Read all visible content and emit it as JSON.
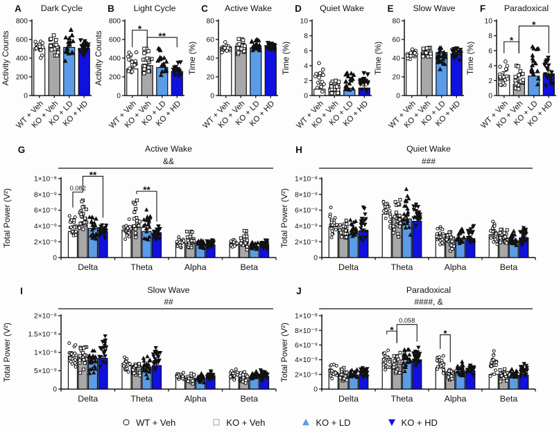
{
  "figure_title": "Sleep-wake activity and EEG spectral power figure",
  "colors": {
    "background": "#fdfdfd",
    "axis": "#111111",
    "wt_veh_fill": "#ffffff",
    "ko_veh_fill": "#a8a8a8",
    "ko_ld_fill": "#5b9ce8",
    "ko_hd_fill": "#1010e0",
    "legend_square_stroke": "#9e9e9e"
  },
  "cohorts": [
    {
      "label": "WT + Veh",
      "fill": "#ffffff",
      "marker": "circle-open"
    },
    {
      "label": "KO + Veh",
      "fill": "#a8a8a8",
      "marker": "square-open"
    },
    {
      "label": "KO + LD",
      "fill": "#5b9ce8",
      "marker": "triangle-up"
    },
    {
      "label": "KO + HD",
      "fill": "#1010e0",
      "marker": "triangle-down"
    }
  ],
  "chart_data": [
    {
      "panel": "A",
      "type": "bar",
      "title": "Dark Cycle",
      "ylabel": "Activity Counts",
      "ylim": [
        0,
        800
      ],
      "yticks": [
        [
          0,
          "0"
        ],
        [
          200,
          "200"
        ],
        [
          400,
          "400"
        ],
        [
          600,
          "600"
        ],
        [
          800,
          "800"
        ]
      ],
      "categories": [
        "WT + Veh",
        "KO + Veh",
        "KO + LD",
        "KO + HD"
      ],
      "values": [
        505,
        525,
        515,
        505
      ],
      "scatter_range": [
        [
          380,
          620
        ],
        [
          390,
          700
        ],
        [
          300,
          780
        ],
        [
          390,
          620
        ]
      ],
      "n_points": 20,
      "err_frac": 0.025,
      "sig": []
    },
    {
      "panel": "B",
      "type": "bar",
      "title": "Light Cycle",
      "ylabel": "Activity Counts",
      "ylim": [
        0,
        800
      ],
      "yticks": [
        [
          0,
          "0"
        ],
        [
          200,
          "200"
        ],
        [
          400,
          "400"
        ],
        [
          600,
          "600"
        ],
        [
          800,
          "800"
        ]
      ],
      "categories": [
        "WT + Veh",
        "KO + Veh",
        "KO + LD",
        "KO + HD"
      ],
      "values": [
        285,
        320,
        300,
        258
      ],
      "scatter_range": [
        [
          195,
          480
        ],
        [
          175,
          550
        ],
        [
          190,
          545
        ],
        [
          170,
          380
        ]
      ],
      "n_points": 20,
      "err_frac": 0.05,
      "sig": [
        {
          "from": 0,
          "to": 1,
          "label": "*",
          "y": 700
        },
        {
          "from": 1,
          "to": 3,
          "label": "**",
          "y": 622
        }
      ]
    },
    {
      "panel": "C",
      "type": "bar",
      "title": "Active Wake",
      "ylabel": "Time (%)",
      "ylim": [
        0,
        80
      ],
      "yticks": [
        [
          0,
          "0"
        ],
        [
          20,
          "20"
        ],
        [
          40,
          "40"
        ],
        [
          60,
          "60"
        ],
        [
          80,
          "80"
        ]
      ],
      "categories": [
        "WT + Veh",
        "KO + Veh",
        "KO + LD",
        "KO + HD"
      ],
      "values": [
        52,
        53,
        51,
        52
      ],
      "scatter_range": [
        [
          44,
          58
        ],
        [
          42,
          62
        ],
        [
          43,
          61
        ],
        [
          46,
          58
        ]
      ],
      "n_points": 20,
      "err_frac": 0.015,
      "sig": []
    },
    {
      "panel": "D",
      "type": "bar",
      "title": "Quiet Wake",
      "ylabel": "Time (%)",
      "ylim": [
        0,
        10
      ],
      "yticks": [
        [
          0,
          "0"
        ],
        [
          2,
          "2"
        ],
        [
          4,
          "4"
        ],
        [
          6,
          "6"
        ],
        [
          8,
          "8"
        ],
        [
          10,
          "10"
        ]
      ],
      "categories": [
        "WT + Veh",
        "KO + Veh",
        "KO + LD",
        "KO + HD"
      ],
      "values": [
        0.85,
        0.55,
        0.75,
        1.0
      ],
      "scatter_range": [
        [
          0.05,
          4.7
        ],
        [
          0.05,
          2.1
        ],
        [
          0.05,
          4.4
        ],
        [
          0.1,
          3.4
        ]
      ],
      "n_points": 20,
      "err_frac": 0.3,
      "sig": []
    },
    {
      "panel": "E",
      "type": "bar",
      "title": "Slow Wave",
      "ylabel": "Time (%)",
      "ylim": [
        0,
        80
      ],
      "yticks": [
        [
          0,
          "0"
        ],
        [
          20,
          "20"
        ],
        [
          40,
          "40"
        ],
        [
          60,
          "60"
        ],
        [
          80,
          "80"
        ]
      ],
      "categories": [
        "WT + Veh",
        "KO + Veh",
        "KO + LD",
        "KO + HD"
      ],
      "values": [
        45,
        46,
        46,
        44
      ],
      "scatter_range": [
        [
          38,
          52
        ],
        [
          37,
          58
        ],
        [
          28,
          56
        ],
        [
          37,
          53
        ]
      ],
      "n_points": 20,
      "err_frac": 0.025,
      "sig": []
    },
    {
      "panel": "F",
      "type": "bar",
      "title": "Paradoxical",
      "ylabel": "Time (%)",
      "ylim": [
        0,
        10
      ],
      "yticks": [
        [
          0,
          "0"
        ],
        [
          2,
          "2"
        ],
        [
          4,
          "4"
        ],
        [
          6,
          "6"
        ],
        [
          8,
          "8"
        ],
        [
          10,
          "10"
        ]
      ],
      "categories": [
        "WT + Veh",
        "KO + Veh",
        "KO + LD",
        "KO + HD"
      ],
      "values": [
        2.7,
        1.5,
        2.6,
        2.9
      ],
      "scatter_range": [
        [
          0.4,
          5.2
        ],
        [
          0.1,
          4.8
        ],
        [
          0.2,
          7.2
        ],
        [
          0.7,
          5.6
        ]
      ],
      "n_points": 20,
      "err_frac": 0.18,
      "sig": [
        {
          "from": 0,
          "to": 1,
          "label": "*",
          "y": 7.2
        },
        {
          "from": 1,
          "to": 3,
          "label": "*",
          "y": 9.3
        }
      ]
    },
    {
      "panel": "G",
      "type": "grouped-bar",
      "title": "Active Wake",
      "subtitle": "&&",
      "ylabel": "Total Power (V²)",
      "value_unit": "×10⁻⁹ V²",
      "ylim": [
        0,
        10
      ],
      "yticks": [
        [
          0,
          "0"
        ],
        [
          2,
          "2×10⁻⁹"
        ],
        [
          4,
          "4×10⁻⁹"
        ],
        [
          6,
          "6×10⁻⁹"
        ],
        [
          8,
          "8×10⁻⁹"
        ],
        [
          10,
          "1×10⁻⁸"
        ]
      ],
      "categories": [
        "Delta",
        "Theta",
        "Alpha",
        "Beta"
      ],
      "series": [
        {
          "name": "WT + Veh",
          "values": [
            3.3,
            3.5,
            1.9,
            1.7
          ]
        },
        {
          "name": "KO + Veh",
          "values": [
            4.1,
            3.8,
            1.8,
            1.5
          ]
        },
        {
          "name": "KO + LD",
          "values": [
            3.7,
            3.3,
            1.6,
            1.4
          ]
        },
        {
          "name": "KO + HD",
          "values": [
            3.3,
            3.0,
            1.6,
            1.5
          ]
        }
      ],
      "scatter_range": [
        [
          [
            2.2,
            5.9
          ],
          [
            1.8,
            8.1
          ],
          [
            2.0,
            5.9
          ],
          [
            2.2,
            4.6
          ]
        ],
        [
          [
            2.0,
            5.1
          ],
          [
            1.4,
            7.6
          ],
          [
            1.9,
            6.4
          ],
          [
            1.9,
            4.1
          ]
        ],
        [
          [
            1.2,
            2.7
          ],
          [
            0.7,
            3.5
          ],
          [
            0.9,
            2.5
          ],
          [
            1.1,
            2.3
          ]
        ],
        [
          [
            1.0,
            2.5
          ],
          [
            0.6,
            3.5
          ],
          [
            0.8,
            2.3
          ],
          [
            1.0,
            2.3
          ]
        ]
      ],
      "n_points": 22,
      "err_frac": 0.06,
      "sig": [
        {
          "group": 0,
          "from": 0,
          "to": 1,
          "label": "0.082",
          "y": 8.3
        },
        {
          "group": 0,
          "from": 1,
          "to": 3,
          "label": "**",
          "y": 10.3
        },
        {
          "group": 1,
          "from": 1,
          "to": 3,
          "label": "**",
          "y": 8.4
        }
      ]
    },
    {
      "panel": "H",
      "type": "grouped-bar",
      "title": "Quiet Wake",
      "subtitle": "###",
      "ylabel": "Total Power (V²)",
      "value_unit": "×10⁻⁹ V²",
      "ylim": [
        0,
        10
      ],
      "yticks": [
        [
          0,
          "0"
        ],
        [
          2,
          "2×10⁻⁹"
        ],
        [
          4,
          "4×10⁻⁹"
        ],
        [
          6,
          "6×10⁻⁹"
        ],
        [
          8,
          "8×10⁻⁹"
        ],
        [
          10,
          "1×10⁻⁸"
        ]
      ],
      "categories": [
        "Delta",
        "Theta",
        "Alpha",
        "Beta"
      ],
      "series": [
        {
          "name": "WT + Veh",
          "values": [
            3.9,
            5.5,
            2.9,
            2.9
          ]
        },
        {
          "name": "KO + Veh",
          "values": [
            3.6,
            5.1,
            2.6,
            2.5
          ]
        },
        {
          "name": "KO + LD",
          "values": [
            3.0,
            4.9,
            2.3,
            2.1
          ]
        },
        {
          "name": "KO + HD",
          "values": [
            3.4,
            4.6,
            2.4,
            2.5
          ]
        }
      ],
      "scatter_range": [
        [
          [
            2.1,
            6.8
          ],
          [
            1.9,
            5.0
          ],
          [
            1.8,
            5.1
          ],
          [
            2.0,
            6.9
          ]
        ],
        [
          [
            3.3,
            8.5
          ],
          [
            1.5,
            8.8
          ],
          [
            2.7,
            9.2
          ],
          [
            3.6,
            7.0
          ]
        ],
        [
          [
            1.0,
            4.7
          ],
          [
            0.8,
            3.9
          ],
          [
            1.1,
            3.9
          ],
          [
            1.5,
            4.6
          ]
        ],
        [
          [
            1.3,
            4.9
          ],
          [
            1.0,
            3.9
          ],
          [
            1.2,
            3.9
          ],
          [
            1.4,
            4.3
          ]
        ]
      ],
      "n_points": 22,
      "err_frac": 0.07,
      "sig": []
    },
    {
      "panel": "I",
      "type": "grouped-bar",
      "title": "Slow Wave",
      "subtitle": "##",
      "ylabel": "Total Power (V²)",
      "value_unit": "×10⁻⁹ V²",
      "ylim": [
        0,
        20
      ],
      "yticks": [
        [
          0,
          "0"
        ],
        [
          5,
          "5×10⁻⁹"
        ],
        [
          10,
          "1×10⁻⁸"
        ],
        [
          15,
          "1.5×10⁻⁸"
        ],
        [
          20,
          "2×10⁻⁸"
        ]
      ],
      "categories": [
        "Delta",
        "Theta",
        "Alpha",
        "Beta"
      ],
      "series": [
        {
          "name": "WT + Veh",
          "values": [
            9.0,
            7.0,
            3.6,
            3.8
          ]
        },
        {
          "name": "KO + Veh",
          "values": [
            8.7,
            6.4,
            3.0,
            3.3
          ]
        },
        {
          "name": "KO + LD",
          "values": [
            8.3,
            6.0,
            2.8,
            3.2
          ]
        },
        {
          "name": "KO + HD",
          "values": [
            8.4,
            6.4,
            3.2,
            3.3
          ]
        }
      ],
      "scatter_range": [
        [
          [
            5.5,
            12.8
          ],
          [
            4.0,
            13.0
          ],
          [
            3.8,
            11.5
          ],
          [
            5.5,
            15.2
          ]
        ],
        [
          [
            4.2,
            9.2
          ],
          [
            2.2,
            8.6
          ],
          [
            2.6,
            10.2
          ],
          [
            4.4,
            11.5
          ]
        ],
        [
          [
            1.8,
            4.8
          ],
          [
            1.2,
            4.6
          ],
          [
            1.4,
            4.9
          ],
          [
            1.9,
            5.4
          ]
        ],
        [
          [
            2.2,
            5.6
          ],
          [
            1.5,
            4.9
          ],
          [
            1.8,
            5.2
          ],
          [
            2.0,
            5.3
          ]
        ]
      ],
      "n_points": 22,
      "err_frac": 0.06,
      "sig": []
    },
    {
      "panel": "J",
      "type": "grouped-bar",
      "title": "Paradoxical",
      "subtitle": "####, &",
      "ylabel": "Total Power (V²)",
      "value_unit": "×10⁻⁹ V²",
      "ylim": [
        0,
        10
      ],
      "yticks": [
        [
          0,
          "0"
        ],
        [
          2,
          "2×10⁻⁹"
        ],
        [
          4,
          "4×10⁻⁹"
        ],
        [
          6,
          "6×10⁻⁹"
        ],
        [
          8,
          "8×10⁻⁹"
        ],
        [
          10,
          "1×10⁻⁸"
        ]
      ],
      "categories": [
        "Delta",
        "Theta",
        "Alpha",
        "Beta"
      ],
      "series": [
        {
          "name": "WT + Veh",
          "values": [
            2.3,
            4.2,
            2.9,
            2.0
          ]
        },
        {
          "name": "KO + Veh",
          "values": [
            2.1,
            3.4,
            2.3,
            1.9
          ]
        },
        {
          "name": "KO + LD",
          "values": [
            1.9,
            3.7,
            2.4,
            1.7
          ]
        },
        {
          "name": "KO + HD",
          "values": [
            2.0,
            4.0,
            2.5,
            1.9
          ]
        }
      ],
      "scatter_range": [
        [
          [
            1.2,
            3.5
          ],
          [
            1.0,
            3.0
          ],
          [
            1.2,
            3.0
          ],
          [
            1.4,
            3.2
          ]
        ],
        [
          [
            2.2,
            7.0
          ],
          [
            1.2,
            5.8
          ],
          [
            2.2,
            6.0
          ],
          [
            2.8,
            6.0
          ]
        ],
        [
          [
            1.5,
            5.0
          ],
          [
            1.0,
            3.2
          ],
          [
            1.4,
            4.2
          ],
          [
            1.8,
            3.8
          ]
        ],
        [
          [
            1.2,
            5.5
          ],
          [
            0.8,
            3.0
          ],
          [
            1.0,
            2.8
          ],
          [
            1.2,
            3.8
          ]
        ]
      ],
      "n_points": 22,
      "err_frac": 0.08,
      "sig": [
        {
          "group": 1,
          "from": 0,
          "to": 1,
          "label": "*",
          "y": 7.9
        },
        {
          "group": 1,
          "from": 1,
          "to": 3,
          "label": "0.058",
          "y": 8.8
        },
        {
          "group": 2,
          "from": 0,
          "to": 1,
          "label": "*",
          "y": 7.4
        }
      ]
    }
  ]
}
